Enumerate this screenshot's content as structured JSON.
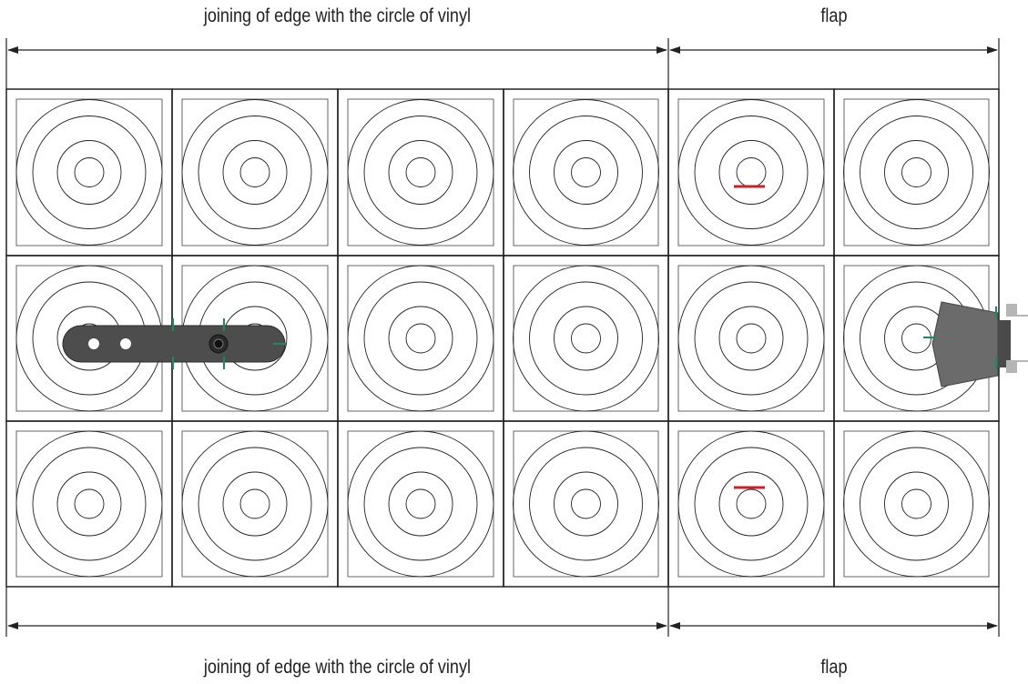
{
  "labels": {
    "top_left": "joining of edge with the circle of vinyl",
    "top_right": "flap",
    "bottom_left": "joining of edge with the circle of vinyl",
    "bottom_right": "flap"
  },
  "grid": {
    "rows": 3,
    "cols": 6,
    "rings_per_tile": 4
  },
  "colors": {
    "line": "#222222",
    "tile_inner_border": "#555555",
    "marker_red": "#cc1f2a",
    "marker_green": "#1e8a5e",
    "tonearm": "#4d4d4d",
    "cartridge": "#6b6b6b",
    "connector": "#b5b5b5"
  },
  "markers": {
    "red_tiles": [
      "row1-col5",
      "row3-col5"
    ],
    "tonearm_tiles": [
      "row2-col1",
      "row2-col2"
    ],
    "cartridge_tile": "row2-col6"
  }
}
